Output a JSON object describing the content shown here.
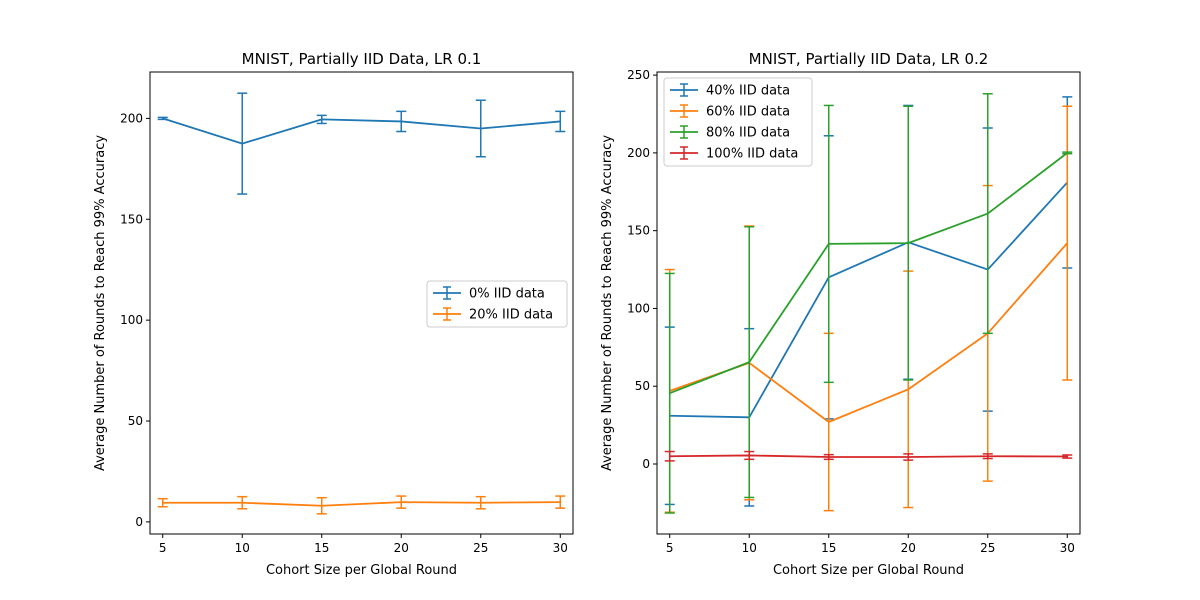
{
  "chart_data": [
    {
      "type": "line",
      "title": "MNIST, Partially IID Data, LR 0.1",
      "xlabel": "Cohort Size per Global Round",
      "ylabel": "Average Number of Rounds to Reach 99% Accuracy",
      "x": [
        5,
        10,
        15,
        20,
        25,
        30
      ],
      "xticks": [
        5,
        10,
        15,
        20,
        25,
        30
      ],
      "xlim": [
        4.2,
        30.8
      ],
      "ylim": [
        -6,
        223
      ],
      "yticks": [
        0,
        50,
        100,
        150,
        200
      ],
      "legend_position": "center-right",
      "series": [
        {
          "name": "0% IID data",
          "color": "#1f77b4",
          "values": [
            200,
            187.5,
            199.5,
            198.5,
            195,
            198.5
          ],
          "errors": [
            0.5,
            25,
            2,
            5,
            14,
            5
          ]
        },
        {
          "name": "20% IID data",
          "color": "#ff7f0e",
          "values": [
            9.5,
            9.5,
            8,
            9.8,
            9.5,
            9.8
          ],
          "errors": [
            2,
            3,
            4,
            3,
            3,
            3
          ]
        }
      ]
    },
    {
      "type": "line",
      "title": "MNIST, Partially IID Data, LR 0.2",
      "xlabel": "Cohort Size per Global Round",
      "ylabel": "Average Number of Rounds to Reach 99% Accuracy",
      "x": [
        5,
        10,
        15,
        20,
        25,
        30
      ],
      "xticks": [
        5,
        10,
        15,
        20,
        25,
        30
      ],
      "xlim": [
        4.2,
        30.8
      ],
      "ylim": [
        -45,
        252
      ],
      "yticks": [
        0,
        50,
        100,
        150,
        200,
        250
      ],
      "legend_position": "upper-left",
      "series": [
        {
          "name": "40% IID data",
          "color": "#1f77b4",
          "values": [
            31,
            30,
            120,
            142.5,
            125,
            181
          ],
          "errors": [
            57,
            57,
            91,
            88,
            91,
            55
          ]
        },
        {
          "name": "60% IID data",
          "color": "#ff7f0e",
          "values": [
            47,
            65,
            27,
            48,
            84,
            142
          ],
          "errors": [
            78,
            88,
            57,
            76,
            95,
            88
          ]
        },
        {
          "name": "80% IID data",
          "color": "#2ca02c",
          "values": [
            45.5,
            65.5,
            141.5,
            142,
            161,
            200
          ],
          "errors": [
            77,
            87,
            89,
            88,
            77,
            0.5
          ]
        },
        {
          "name": "100% IID data",
          "color": "#d62728",
          "values": [
            5,
            5.5,
            4.5,
            4.5,
            5,
            4.8
          ],
          "errors": [
            3,
            2.5,
            1.5,
            2,
            1.5,
            1
          ]
        }
      ]
    }
  ]
}
